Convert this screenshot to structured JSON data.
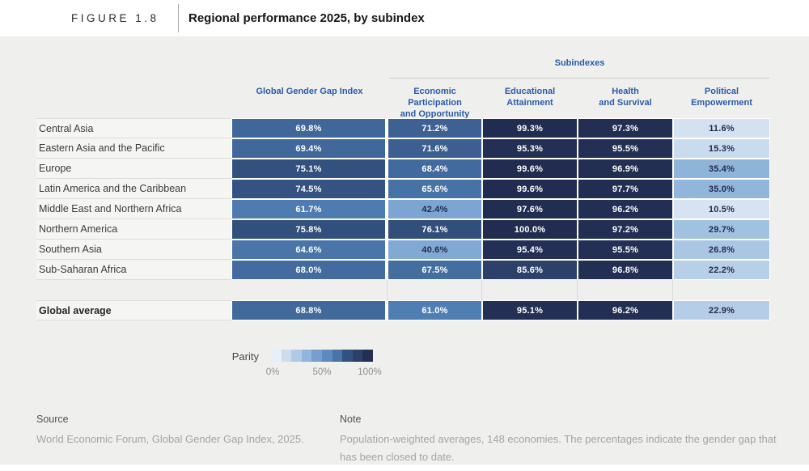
{
  "header": {
    "figure_label": "FIGURE 1.8",
    "title": "Regional performance 2025, by subindex"
  },
  "table": {
    "subindexes_label": "Subindexes",
    "columns": [
      {
        "id": "gggi",
        "lines": [
          "Global Gender Gap Index"
        ]
      },
      {
        "id": "econ",
        "lines": [
          "Economic Participation",
          "and Opportunity"
        ]
      },
      {
        "id": "edu",
        "lines": [
          "Educational",
          "Attainment"
        ]
      },
      {
        "id": "health",
        "lines": [
          "Health",
          "and Survival"
        ]
      },
      {
        "id": "pol",
        "lines": [
          "Political",
          "Empowerment"
        ]
      }
    ]
  },
  "chart_data": {
    "type": "heatmap",
    "title": "Regional performance 2025, by subindex",
    "unit": "% of gender gap closed",
    "columns": [
      "Global Gender Gap Index",
      "Economic Participation and Opportunity",
      "Educational Attainment",
      "Health and Survival",
      "Political Empowerment"
    ],
    "regions": [
      {
        "name": "Central Asia",
        "values": [
          69.8,
          71.2,
          99.3,
          97.3,
          11.6
        ]
      },
      {
        "name": "Eastern Asia and the Pacific",
        "values": [
          69.4,
          71.6,
          95.3,
          95.5,
          15.3
        ]
      },
      {
        "name": "Europe",
        "values": [
          75.1,
          68.4,
          99.6,
          96.9,
          35.4
        ]
      },
      {
        "name": "Latin America and the Caribbean",
        "values": [
          74.5,
          65.6,
          99.6,
          97.7,
          35.0
        ]
      },
      {
        "name": "Middle East and Northern Africa",
        "values": [
          61.7,
          42.4,
          97.6,
          96.2,
          10.5
        ]
      },
      {
        "name": "Northern America",
        "values": [
          75.8,
          76.1,
          100.0,
          97.2,
          29.7
        ]
      },
      {
        "name": "Southern Asia",
        "values": [
          64.6,
          40.6,
          95.4,
          95.5,
          26.8
        ]
      },
      {
        "name": "Sub-Saharan Africa",
        "values": [
          68.0,
          67.5,
          85.6,
          96.8,
          22.2
        ]
      }
    ],
    "global_average": {
      "name": "Global average",
      "values": [
        68.8,
        61.0,
        95.1,
        96.2,
        22.9
      ]
    },
    "color_scale_domain": [
      0,
      100
    ]
  },
  "legend": {
    "label": "Parity",
    "tick_labels": [
      "0%",
      "50%",
      "100%"
    ],
    "swatch_values": [
      5,
      15,
      25,
      35,
      45,
      55,
      65,
      75,
      85,
      95
    ]
  },
  "footer": {
    "source_label": "Source",
    "source_text": "World Economic Forum, Global Gender Gap Index, 2025.",
    "note_label": "Note",
    "note_text": "Population-weighted averages, 148 economies. The percentages indicate the gender gap that has been closed to date."
  },
  "colors": {
    "accent_blue": "#2a5ba7",
    "dark_cell_text": "#1f2b4f",
    "white_cell_text": "#ffffff",
    "scale_stops": [
      [
        0,
        "#f8fafd"
      ],
      [
        10,
        "#d8e4f2"
      ],
      [
        20,
        "#bfd3ea"
      ],
      [
        30,
        "#9fc0e0"
      ],
      [
        40,
        "#82aad5"
      ],
      [
        50,
        "#6b94c6"
      ],
      [
        60,
        "#5181b6"
      ],
      [
        70,
        "#406699"
      ],
      [
        75,
        "#33517f"
      ],
      [
        80,
        "#2f4873"
      ],
      [
        87,
        "#2b3e66"
      ],
      [
        95,
        "#242f55"
      ],
      [
        100,
        "#212c50"
      ]
    ]
  }
}
